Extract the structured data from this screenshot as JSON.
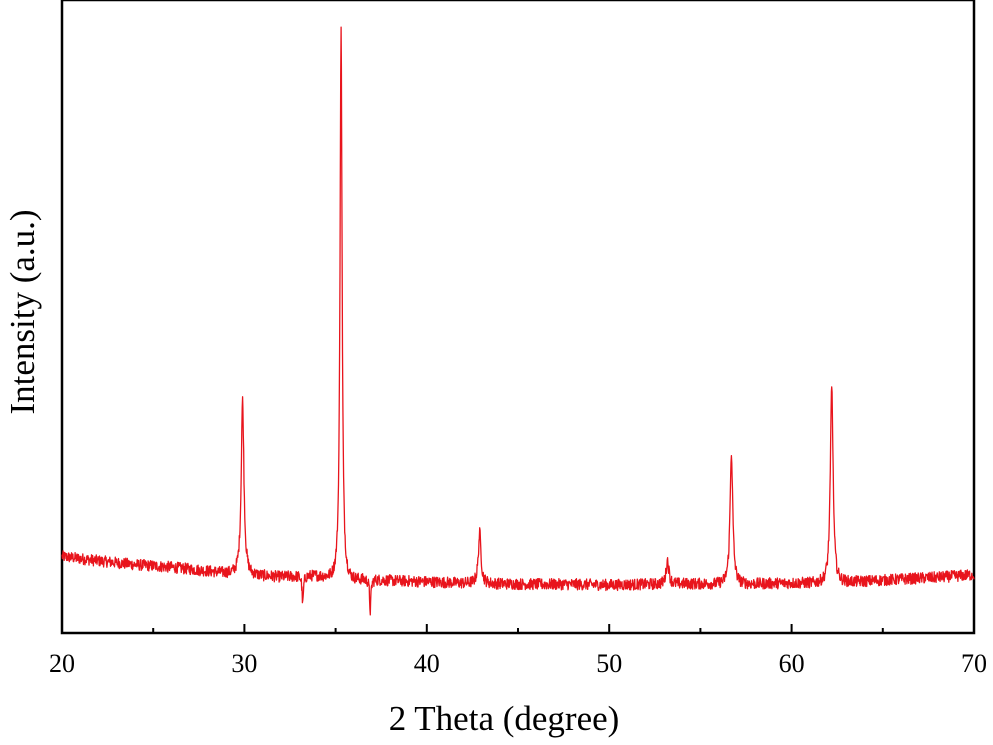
{
  "chart_data": {
    "type": "line",
    "title": "",
    "xlabel": "2 Theta (degree)",
    "ylabel": "Intensity (a.u.)",
    "xlim": [
      20,
      70
    ],
    "ylim": [
      0,
      1
    ],
    "x_ticks": [
      20,
      30,
      40,
      50,
      60,
      70
    ],
    "x_minor_ticks": [
      25,
      35,
      45,
      55,
      65
    ],
    "y_ticks": [],
    "grid": false,
    "legend": "none",
    "line_color": "#e8141c",
    "baseline": [
      [
        20,
        0.121
      ],
      [
        22,
        0.114
      ],
      [
        24,
        0.108
      ],
      [
        26,
        0.104
      ],
      [
        28,
        0.098
      ],
      [
        30,
        0.093
      ],
      [
        32,
        0.089
      ],
      [
        34,
        0.091
      ],
      [
        36,
        0.086
      ],
      [
        38,
        0.083
      ],
      [
        40,
        0.081
      ],
      [
        42,
        0.079
      ],
      [
        44,
        0.078
      ],
      [
        46,
        0.077
      ],
      [
        48,
        0.077
      ],
      [
        50,
        0.076
      ],
      [
        52,
        0.077
      ],
      [
        54,
        0.078
      ],
      [
        56,
        0.078
      ],
      [
        58,
        0.078
      ],
      [
        60,
        0.079
      ],
      [
        62,
        0.08
      ],
      [
        64,
        0.082
      ],
      [
        66,
        0.085
      ],
      [
        68,
        0.088
      ],
      [
        70,
        0.092
      ]
    ],
    "peaks": [
      {
        "x": 29.9,
        "y": 0.368
      },
      {
        "x": 33.2,
        "y": 0.045
      },
      {
        "x": 35.3,
        "y": 0.96
      },
      {
        "x": 36.9,
        "y": 0.035
      },
      {
        "x": 42.9,
        "y": 0.158
      },
      {
        "x": 53.2,
        "y": 0.115
      },
      {
        "x": 56.7,
        "y": 0.285
      },
      {
        "x": 62.2,
        "y": 0.392
      }
    ]
  }
}
